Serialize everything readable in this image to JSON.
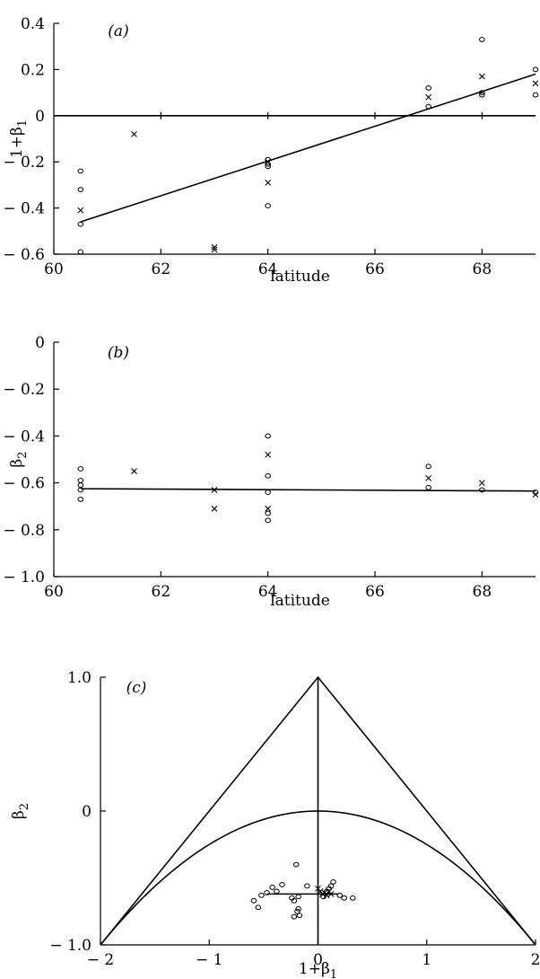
{
  "chart_data": [
    {
      "id": "a",
      "type": "scatter",
      "panel_label": "(a)",
      "xlabel": "latitude",
      "ylabel": "1+β1",
      "xlim": [
        60,
        69
      ],
      "ylim": [
        -0.6,
        0.4
      ],
      "xticks": [
        60,
        62,
        64,
        66,
        68
      ],
      "xtick_labels": [
        "60",
        "62",
        "64",
        "66",
        "68"
      ],
      "yticks": [
        -0.6,
        -0.4,
        -0.2,
        0,
        0.2,
        0.4
      ],
      "ytick_labels": [
        "− 0.6",
        "− 0.4",
        "− 0.2",
        "0",
        "0.2",
        "0.4"
      ],
      "zero_line": 0,
      "zero_line_ticks": [
        62,
        64,
        66,
        68
      ],
      "series": [
        {
          "marker": "circle",
          "x": [
            60.5,
            60.5,
            60.5,
            60.5,
            64,
            64,
            64,
            64,
            67,
            67,
            68,
            68,
            68,
            69,
            69
          ],
          "y": [
            -0.24,
            -0.32,
            -0.47,
            -0.59,
            -0.19,
            -0.21,
            -0.22,
            -0.39,
            0.12,
            0.04,
            0.33,
            0.1,
            0.09,
            0.2,
            0.09
          ]
        },
        {
          "marker": "cross",
          "x": [
            60.5,
            61.5,
            63,
            63,
            64,
            64,
            67,
            68,
            69
          ],
          "y": [
            -0.41,
            -0.08,
            -0.57,
            -0.58,
            -0.2,
            -0.29,
            0.08,
            0.17,
            0.14
          ]
        }
      ],
      "fit_line": {
        "x": [
          60.5,
          69
        ],
        "y": [
          -0.46,
          0.18
        ]
      }
    },
    {
      "id": "b",
      "type": "scatter",
      "panel_label": "(b)",
      "xlabel": "latitude",
      "ylabel": "β2",
      "xlim": [
        60,
        69
      ],
      "ylim": [
        -1.0,
        0
      ],
      "xticks": [
        60,
        62,
        64,
        66,
        68
      ],
      "xtick_labels": [
        "60",
        "62",
        "64",
        "66",
        "68"
      ],
      "yticks": [
        -1.0,
        -0.8,
        -0.6,
        -0.4,
        -0.2,
        0
      ],
      "ytick_labels": [
        "− 1.0",
        "− 0.8",
        "− 0.6",
        "− 0.4",
        "− 0.2",
        "0"
      ],
      "series": [
        {
          "marker": "circle",
          "x": [
            60.5,
            60.5,
            60.5,
            60.5,
            60.5,
            64,
            64,
            64,
            64,
            64,
            67,
            67,
            68,
            69
          ],
          "y": [
            -0.54,
            -0.59,
            -0.61,
            -0.63,
            -0.67,
            -0.4,
            -0.57,
            -0.64,
            -0.73,
            -0.76,
            -0.53,
            -0.62,
            -0.63,
            -0.64
          ]
        },
        {
          "marker": "cross",
          "x": [
            61.5,
            63,
            63,
            64,
            64,
            67,
            68,
            69
          ],
          "y": [
            -0.55,
            -0.63,
            -0.71,
            -0.48,
            -0.71,
            -0.58,
            -0.6,
            -0.65
          ]
        }
      ],
      "fit_line": {
        "x": [
          60.5,
          69
        ],
        "y": [
          -0.625,
          -0.635
        ]
      }
    },
    {
      "id": "c",
      "type": "scatter",
      "panel_label": "(c)",
      "xlabel": "1+β1",
      "ylabel": "β2",
      "xlim": [
        -2,
        2
      ],
      "ylim": [
        -1.0,
        1.0
      ],
      "xticks": [
        -2,
        -1,
        0,
        1,
        2
      ],
      "xtick_labels": [
        "− 2",
        "− 1",
        "0",
        "1",
        "2"
      ],
      "yticks": [
        -1.0,
        0,
        1.0
      ],
      "ytick_labels": [
        "− 1.0",
        "0",
        "1.0"
      ],
      "triangle": {
        "x": [
          -2,
          0,
          2
        ],
        "y": [
          -1,
          1,
          -1
        ]
      },
      "parabola": {
        "x_from": -2,
        "x_to": 2,
        "formula": "y = -x^2/4"
      },
      "vertical_line_x": 0,
      "series": [
        {
          "marker": "circle",
          "x": [
            -0.59,
            -0.55,
            -0.52,
            -0.47,
            -0.42,
            -0.38,
            -0.33,
            -0.24,
            -0.22,
            -0.22,
            -0.2,
            -0.19,
            -0.18,
            -0.18,
            -0.17,
            -0.1,
            0.05,
            0.08,
            0.1,
            0.12,
            0.14,
            0.2,
            0.24,
            0.32
          ],
          "y": [
            -0.67,
            -0.72,
            -0.63,
            -0.61,
            -0.57,
            -0.6,
            -0.55,
            -0.65,
            -0.67,
            -0.79,
            -0.4,
            -0.75,
            -0.73,
            -0.64,
            -0.78,
            -0.56,
            -0.64,
            -0.6,
            -0.58,
            -0.56,
            -0.53,
            -0.63,
            -0.65,
            -0.65
          ]
        },
        {
          "marker": "cross",
          "x": [
            0.0,
            0.02,
            0.04,
            0.06,
            0.08,
            0.1,
            0.12
          ],
          "y": [
            -0.58,
            -0.6,
            -0.62,
            -0.61,
            -0.63,
            -0.6,
            -0.62
          ]
        }
      ],
      "fit_line": {
        "x": [
          -0.47,
          0.19
        ],
        "y": [
          -0.62,
          -0.62
        ]
      }
    }
  ]
}
